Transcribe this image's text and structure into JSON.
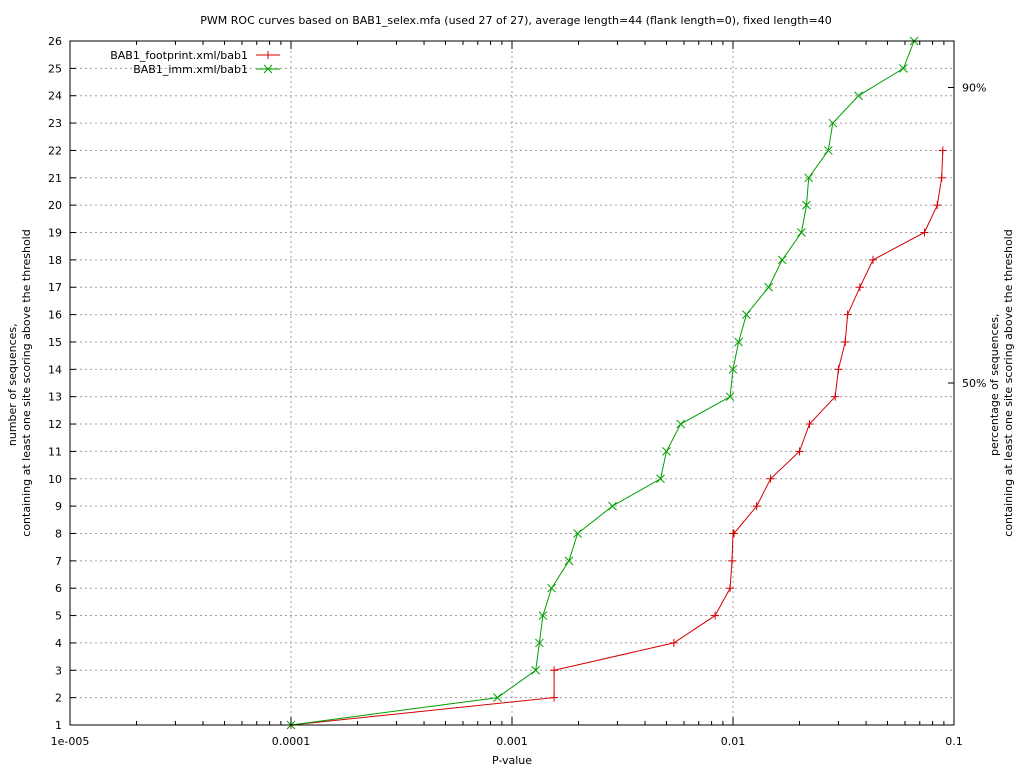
{
  "chart_data": {
    "type": "line",
    "title": "PWM ROC curves based on BAB1_selex.mfa (used 27 of 27), average length=44 (flank length=0), fixed length=40",
    "xlabel": "P-value",
    "ylabel_lines": [
      "number of sequences,",
      "containing at least one site scoring above the threshold"
    ],
    "y2label_lines": [
      "percentage of sequences,",
      "containing at least one site scoring above the threshold"
    ],
    "x_scale": "log",
    "xlim": [
      1e-05,
      0.1
    ],
    "ylim": [
      1,
      26
    ],
    "grid": true,
    "legend_position": "top-left",
    "x_ticks": [
      {
        "value": 1e-05,
        "label": "1e-005"
      },
      {
        "value": 0.0001,
        "label": "0.0001"
      },
      {
        "value": 0.001,
        "label": "0.001"
      },
      {
        "value": 0.01,
        "label": "0.01"
      },
      {
        "value": 0.1,
        "label": "0.1"
      }
    ],
    "y_ticks": [
      1,
      2,
      3,
      4,
      5,
      6,
      7,
      8,
      9,
      10,
      11,
      12,
      13,
      14,
      15,
      16,
      17,
      18,
      19,
      20,
      21,
      22,
      23,
      24,
      25,
      26
    ],
    "y2_ticks": [
      {
        "value": 13.5,
        "label": "50%"
      },
      {
        "value": 24.3,
        "label": "90%"
      }
    ],
    "series": [
      {
        "name": "BAB1_footprint.xml/bab1",
        "color": "#d40000",
        "marker": "plus",
        "x": [
          0.0001,
          0.00155,
          0.00155,
          0.0054,
          0.0083,
          0.0097,
          0.0099,
          0.01,
          0.0101,
          0.0128,
          0.0148,
          0.02,
          0.0222,
          0.029,
          0.03,
          0.0322,
          0.033,
          0.0375,
          0.043,
          0.0735,
          0.084,
          0.088,
          0.089
        ],
        "y": [
          1,
          2,
          3,
          4,
          5,
          6,
          7,
          8,
          8,
          9,
          10,
          11,
          12,
          13,
          14,
          15,
          16,
          17,
          18,
          19,
          20,
          21,
          22
        ]
      },
      {
        "name": "BAB1_imm.xml/bab1",
        "color": "#00a000",
        "marker": "cross",
        "x": [
          0.0001,
          0.00086,
          0.00128,
          0.00133,
          0.00138,
          0.00151,
          0.00181,
          0.00198,
          0.00285,
          0.0047,
          0.005,
          0.0058,
          0.0097,
          0.01,
          0.0106,
          0.0115,
          0.0145,
          0.0167,
          0.0204,
          0.0215,
          0.022,
          0.027,
          0.0283,
          0.037,
          0.059,
          0.066
        ],
        "y": [
          1,
          2,
          3,
          4,
          5,
          6,
          7,
          8,
          9,
          10,
          11,
          12,
          13,
          14,
          15,
          16,
          17,
          18,
          19,
          20,
          21,
          22,
          23,
          24,
          25,
          26
        ]
      }
    ]
  }
}
